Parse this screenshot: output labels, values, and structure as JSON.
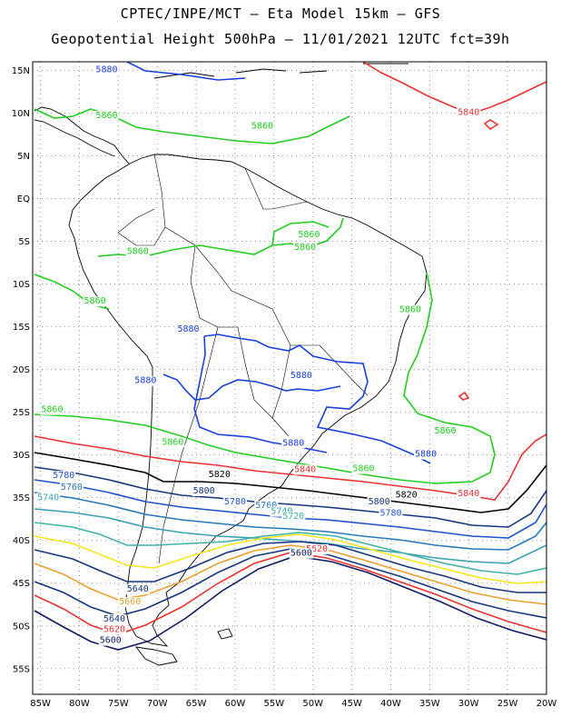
{
  "title_line1": "CPTEC/INPE/MCT –  Eta Model 15km – GFS",
  "title_line2": "Geopotential Height 500hPa – 11/01/2021 12UTC fct=39h",
  "map": {
    "lon_range": [
      -86,
      -20
    ],
    "lat_range": [
      -58,
      16
    ],
    "lat_ticks": [
      {
        "lat": 15,
        "label": "15N"
      },
      {
        "lat": 10,
        "label": "10N"
      },
      {
        "lat": 5,
        "label": "5N"
      },
      {
        "lat": 0,
        "label": "EQ"
      },
      {
        "lat": -5,
        "label": "5S"
      },
      {
        "lat": -10,
        "label": "10S"
      },
      {
        "lat": -15,
        "label": "15S"
      },
      {
        "lat": -20,
        "label": "20S"
      },
      {
        "lat": -25,
        "label": "25S"
      },
      {
        "lat": -30,
        "label": "30S"
      },
      {
        "lat": -35,
        "label": "35S"
      },
      {
        "lat": -40,
        "label": "40S"
      },
      {
        "lat": -45,
        "label": "45S"
      },
      {
        "lat": -50,
        "label": "50S"
      },
      {
        "lat": -55,
        "label": "55S"
      }
    ],
    "lon_ticks": [
      {
        "lon": -85,
        "label": "85W"
      },
      {
        "lon": -80,
        "label": "80W"
      },
      {
        "lon": -75,
        "label": "75W"
      },
      {
        "lon": -70,
        "label": "70W"
      },
      {
        "lon": -65,
        "label": "65W"
      },
      {
        "lon": -60,
        "label": "60W"
      },
      {
        "lon": -55,
        "label": "55W"
      },
      {
        "lon": -50,
        "label": "50W"
      },
      {
        "lon": -45,
        "label": "45W"
      },
      {
        "lon": -40,
        "label": "40W"
      },
      {
        "lon": -35,
        "label": "35W"
      },
      {
        "lon": -30,
        "label": "30W"
      },
      {
        "lon": -25,
        "label": "25W"
      },
      {
        "lon": -20,
        "label": "20W"
      }
    ],
    "contours": [
      {
        "value": "5880",
        "color": "#1a3fd6",
        "labels": [
          {
            "text": "5880",
            "lon": -76.5,
            "lat": 14.8
          },
          {
            "text": "5880",
            "lon": -66,
            "lat": -15.6
          },
          {
            "text": "5880",
            "lon": -71.5,
            "lat": -21.6
          },
          {
            "text": "5880",
            "lon": -51.5,
            "lat": -21.0
          },
          {
            "text": "5880",
            "lon": -52.5,
            "lat": -28.9
          },
          {
            "text": "5880",
            "lon": -35.5,
            "lat": -30.2
          }
        ]
      },
      {
        "value": "5860",
        "color": "#22cc22",
        "labels": [
          {
            "text": "5860",
            "lon": -76.5,
            "lat": 9.4
          },
          {
            "text": "5860",
            "lon": -56.5,
            "lat": 8.2
          },
          {
            "text": "5860",
            "lon": -72.5,
            "lat": -6.5
          },
          {
            "text": "5860",
            "lon": -51,
            "lat": -6.0
          },
          {
            "text": "5860",
            "lon": -50.5,
            "lat": -4.5
          },
          {
            "text": "5860",
            "lon": -78,
            "lat": -12.3
          },
          {
            "text": "5860",
            "lon": -37.5,
            "lat": -13.3
          },
          {
            "text": "5860",
            "lon": -83.5,
            "lat": -25.0
          },
          {
            "text": "5860",
            "lon": -68,
            "lat": -28.8
          },
          {
            "text": "5860",
            "lon": -33,
            "lat": -27.5
          },
          {
            "text": "5860",
            "lon": -43.5,
            "lat": -31.9
          }
        ]
      },
      {
        "value": "5840",
        "color": "#e83232",
        "labels": [
          {
            "text": "5840",
            "lon": -30,
            "lat": 9.8
          },
          {
            "text": "5840",
            "lon": -51,
            "lat": -32.0
          },
          {
            "text": "5840",
            "lon": -30,
            "lat": -34.8
          }
        ]
      },
      {
        "value": "5820",
        "color": "#000000",
        "labels": [
          {
            "text": "5820",
            "lon": -62,
            "lat": -32.6
          },
          {
            "text": "5820",
            "lon": -38,
            "lat": -35.0
          }
        ]
      },
      {
        "value": "5800",
        "color": "#16357a",
        "labels": [
          {
            "text": "5800",
            "lon": -64,
            "lat": -34.5
          },
          {
            "text": "5800",
            "lon": -41.5,
            "lat": -35.8
          }
        ]
      },
      {
        "value": "5780",
        "color": "#2050c8",
        "labels": [
          {
            "text": "5780",
            "lon": -82,
            "lat": -32.7
          },
          {
            "text": "5780",
            "lon": -60,
            "lat": -35.8
          },
          {
            "text": "5780",
            "lon": -40,
            "lat": -37.1
          }
        ]
      },
      {
        "value": "5760",
        "color": "#2878b8",
        "labels": [
          {
            "text": "5760",
            "lon": -81,
            "lat": -34.1
          },
          {
            "text": "5760",
            "lon": -56,
            "lat": -36.2
          }
        ]
      },
      {
        "value": "5740",
        "color": "#3aa0b0",
        "labels": [
          {
            "text": "5740",
            "lon": -84,
            "lat": -35.3
          },
          {
            "text": "5740",
            "lon": -54,
            "lat": -36.9
          }
        ]
      },
      {
        "value": "5720",
        "color": "#40b0a8",
        "labels": [
          {
            "text": "5720",
            "lon": -52.5,
            "lat": -37.5
          }
        ]
      },
      {
        "value": "5660",
        "color": "#e8a030",
        "labels": [
          {
            "text": "5660",
            "lon": -73.5,
            "lat": -47.5
          }
        ]
      },
      {
        "value": "5640",
        "color": "#16357a",
        "labels": [
          {
            "text": "5640",
            "lon": -72.5,
            "lat": -46.0
          },
          {
            "text": "5640",
            "lon": -75.5,
            "lat": -49.5
          }
        ]
      },
      {
        "value": "5620",
        "color": "#e83232",
        "labels": [
          {
            "text": "5620",
            "lon": -75.5,
            "lat": -50.7
          },
          {
            "text": "5620",
            "lon": -49.5,
            "lat": -41.3
          }
        ]
      },
      {
        "value": "5600",
        "color": "#101c60",
        "labels": [
          {
            "text": "5600",
            "lon": -76,
            "lat": -52.0
          },
          {
            "text": "5600",
            "lon": -51.5,
            "lat": -41.8
          }
        ]
      }
    ]
  }
}
